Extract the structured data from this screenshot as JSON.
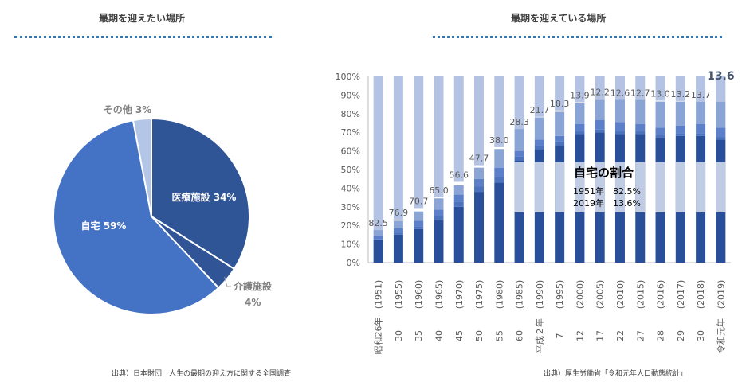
{
  "left_panel": {
    "title": "最期を迎えたい場所",
    "source": "出典）日本財団　人生の最期の迎え方に関する全国調査"
  },
  "right_panel": {
    "title": "最期を迎えている場所",
    "source": "出典）厚生労働省「令和元年人口動態統計」"
  },
  "colors": {
    "pie_home": "#4472c4",
    "pie_medical": "#2f5597",
    "pie_care": "#305496",
    "pie_other": "#b4c6e7",
    "bar_light": "#b4c3e3",
    "bar_pale": "#d0d9ec",
    "bar_mid": "#4a72bd",
    "bar_dark": "#2a4f9a",
    "accent": "#2e75b6"
  },
  "chart_data": [
    {
      "type": "pie",
      "title": "最期を迎えたい場所",
      "slices": [
        {
          "name": "医療施設",
          "value": 34,
          "label": "医療施設 34%"
        },
        {
          "name": "介護施設",
          "value": 4,
          "label": "介護施設",
          "label2": "4%"
        },
        {
          "name": "自宅",
          "value": 59,
          "label": "自宅 59%"
        },
        {
          "name": "その他",
          "value": 3,
          "label": "その他 3%"
        }
      ]
    },
    {
      "type": "bar",
      "title": "最期を迎えている場所",
      "stacked": true,
      "ylim": [
        0,
        100
      ],
      "yticks": [
        "0%",
        "10%",
        "20%",
        "30%",
        "40%",
        "50%",
        "60%",
        "70%",
        "80%",
        "90%",
        "100%"
      ],
      "categories": [
        {
          "era": "昭和26年",
          "year": "(1951)"
        },
        {
          "era": "30",
          "year": "(1955)"
        },
        {
          "era": "35",
          "year": "(1960)"
        },
        {
          "era": "40",
          "year": "(1965)"
        },
        {
          "era": "45",
          "year": "(1970)"
        },
        {
          "era": "50",
          "year": "(1975)"
        },
        {
          "era": "55",
          "year": "(1980)"
        },
        {
          "era": "60",
          "year": "(1985)"
        },
        {
          "era": "平成２年",
          "year": "(1990)"
        },
        {
          "era": "7",
          "year": "(1995)"
        },
        {
          "era": "12",
          "year": "(2000)"
        },
        {
          "era": "17",
          "year": "(2005)"
        },
        {
          "era": "22",
          "year": "(2010)"
        },
        {
          "era": "27",
          "year": "(2015)"
        },
        {
          "era": "28",
          "year": "(2016)"
        },
        {
          "era": "29",
          "year": "(2017)"
        },
        {
          "era": "30",
          "year": "(2018)"
        },
        {
          "era": "令和元年",
          "year": "(2019)"
        }
      ],
      "home_share": [
        82.5,
        76.9,
        70.7,
        65.0,
        56.6,
        47.7,
        38.0,
        28.3,
        21.7,
        18.3,
        13.9,
        12.2,
        12.6,
        12.7,
        13.0,
        13.2,
        13.7,
        13.6
      ],
      "home_labels": [
        "82.5",
        "76.9",
        "70.7",
        "65.0",
        "56.6",
        "47.7",
        "38.0",
        "28.3",
        "21.7",
        "18.3",
        "13.9",
        "12.2",
        "12.6",
        "12.7",
        "13.0",
        "13.2",
        "13.7",
        "13.6"
      ],
      "annotation": {
        "title": "自宅の割合",
        "line1": "1951年　82.5%",
        "line2": "2019年　13.6%"
      }
    }
  ]
}
